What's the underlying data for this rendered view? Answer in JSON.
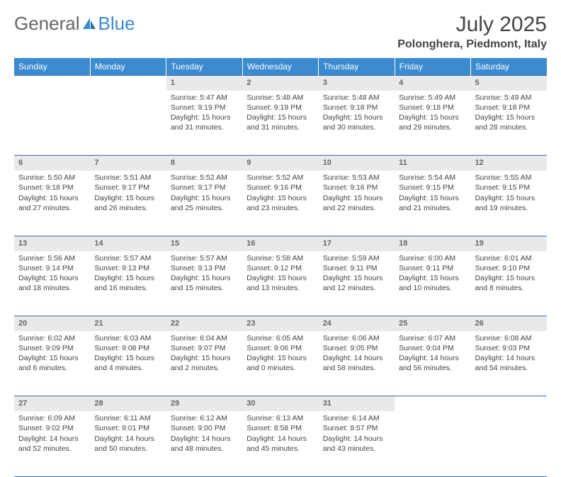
{
  "brand": {
    "part1": "General",
    "part2": "Blue"
  },
  "title": "July 2025",
  "location": "Polonghera, Piedmont, Italy",
  "colors": {
    "header_bg": "#3a8bd0",
    "rule": "#2e6da4",
    "daynum_bg": "#e9e9e9",
    "text": "#444444"
  },
  "day_headers": [
    "Sunday",
    "Monday",
    "Tuesday",
    "Wednesday",
    "Thursday",
    "Friday",
    "Saturday"
  ],
  "weeks": [
    [
      null,
      null,
      {
        "n": "1",
        "sunrise": "5:47 AM",
        "sunset": "9:19 PM",
        "daylight": "15 hours and 31 minutes."
      },
      {
        "n": "2",
        "sunrise": "5:48 AM",
        "sunset": "9:19 PM",
        "daylight": "15 hours and 31 minutes."
      },
      {
        "n": "3",
        "sunrise": "5:48 AM",
        "sunset": "9:18 PM",
        "daylight": "15 hours and 30 minutes."
      },
      {
        "n": "4",
        "sunrise": "5:49 AM",
        "sunset": "9:18 PM",
        "daylight": "15 hours and 29 minutes."
      },
      {
        "n": "5",
        "sunrise": "5:49 AM",
        "sunset": "9:18 PM",
        "daylight": "15 hours and 28 minutes."
      }
    ],
    [
      {
        "n": "6",
        "sunrise": "5:50 AM",
        "sunset": "9:18 PM",
        "daylight": "15 hours and 27 minutes."
      },
      {
        "n": "7",
        "sunrise": "5:51 AM",
        "sunset": "9:17 PM",
        "daylight": "15 hours and 26 minutes."
      },
      {
        "n": "8",
        "sunrise": "5:52 AM",
        "sunset": "9:17 PM",
        "daylight": "15 hours and 25 minutes."
      },
      {
        "n": "9",
        "sunrise": "5:52 AM",
        "sunset": "9:16 PM",
        "daylight": "15 hours and 23 minutes."
      },
      {
        "n": "10",
        "sunrise": "5:53 AM",
        "sunset": "9:16 PM",
        "daylight": "15 hours and 22 minutes."
      },
      {
        "n": "11",
        "sunrise": "5:54 AM",
        "sunset": "9:15 PM",
        "daylight": "15 hours and 21 minutes."
      },
      {
        "n": "12",
        "sunrise": "5:55 AM",
        "sunset": "9:15 PM",
        "daylight": "15 hours and 19 minutes."
      }
    ],
    [
      {
        "n": "13",
        "sunrise": "5:56 AM",
        "sunset": "9:14 PM",
        "daylight": "15 hours and 18 minutes."
      },
      {
        "n": "14",
        "sunrise": "5:57 AM",
        "sunset": "9:13 PM",
        "daylight": "15 hours and 16 minutes."
      },
      {
        "n": "15",
        "sunrise": "5:57 AM",
        "sunset": "9:13 PM",
        "daylight": "15 hours and 15 minutes."
      },
      {
        "n": "16",
        "sunrise": "5:58 AM",
        "sunset": "9:12 PM",
        "daylight": "15 hours and 13 minutes."
      },
      {
        "n": "17",
        "sunrise": "5:59 AM",
        "sunset": "9:11 PM",
        "daylight": "15 hours and 12 minutes."
      },
      {
        "n": "18",
        "sunrise": "6:00 AM",
        "sunset": "9:11 PM",
        "daylight": "15 hours and 10 minutes."
      },
      {
        "n": "19",
        "sunrise": "6:01 AM",
        "sunset": "9:10 PM",
        "daylight": "15 hours and 8 minutes."
      }
    ],
    [
      {
        "n": "20",
        "sunrise": "6:02 AM",
        "sunset": "9:09 PM",
        "daylight": "15 hours and 6 minutes."
      },
      {
        "n": "21",
        "sunrise": "6:03 AM",
        "sunset": "9:08 PM",
        "daylight": "15 hours and 4 minutes."
      },
      {
        "n": "22",
        "sunrise": "6:04 AM",
        "sunset": "9:07 PM",
        "daylight": "15 hours and 2 minutes."
      },
      {
        "n": "23",
        "sunrise": "6:05 AM",
        "sunset": "9:06 PM",
        "daylight": "15 hours and 0 minutes."
      },
      {
        "n": "24",
        "sunrise": "6:06 AM",
        "sunset": "9:05 PM",
        "daylight": "14 hours and 58 minutes."
      },
      {
        "n": "25",
        "sunrise": "6:07 AM",
        "sunset": "9:04 PM",
        "daylight": "14 hours and 56 minutes."
      },
      {
        "n": "26",
        "sunrise": "6:08 AM",
        "sunset": "9:03 PM",
        "daylight": "14 hours and 54 minutes."
      }
    ],
    [
      {
        "n": "27",
        "sunrise": "6:09 AM",
        "sunset": "9:02 PM",
        "daylight": "14 hours and 52 minutes."
      },
      {
        "n": "28",
        "sunrise": "6:11 AM",
        "sunset": "9:01 PM",
        "daylight": "14 hours and 50 minutes."
      },
      {
        "n": "29",
        "sunrise": "6:12 AM",
        "sunset": "9:00 PM",
        "daylight": "14 hours and 48 minutes."
      },
      {
        "n": "30",
        "sunrise": "6:13 AM",
        "sunset": "8:58 PM",
        "daylight": "14 hours and 45 minutes."
      },
      {
        "n": "31",
        "sunrise": "6:14 AM",
        "sunset": "8:57 PM",
        "daylight": "14 hours and 43 minutes."
      },
      null,
      null
    ]
  ],
  "labels": {
    "sunrise": "Sunrise:",
    "sunset": "Sunset:",
    "daylight": "Daylight:"
  }
}
